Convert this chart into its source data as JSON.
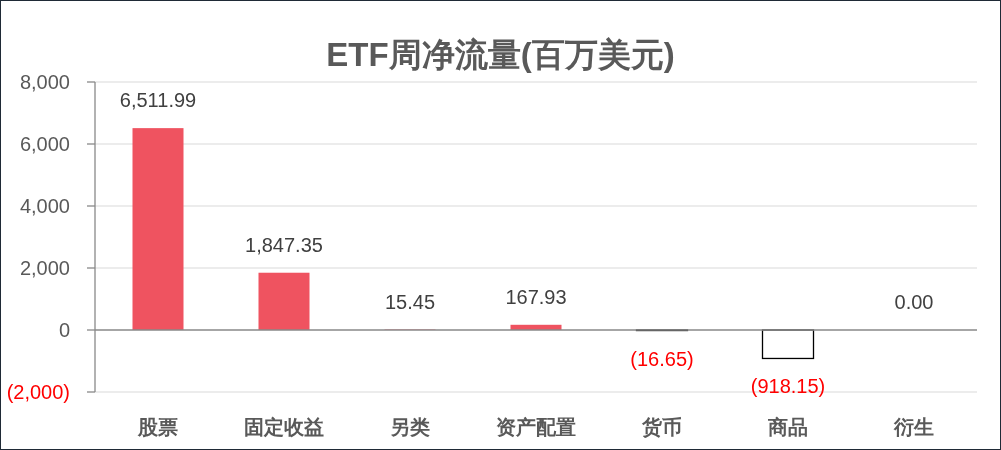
{
  "chart_data": {
    "type": "bar",
    "title": "ETF周净流量(百万美元)",
    "categories": [
      "股票",
      "固定收益",
      "另类",
      "资产配置",
      "货币",
      "商品",
      "衍生"
    ],
    "values": [
      6511.99,
      1847.35,
      15.45,
      167.93,
      -16.65,
      -918.15,
      0
    ],
    "colors": [
      "#ef5360",
      "#ef5360",
      "#ef5360",
      "#ef5360",
      "#ffffff",
      "#ffffff",
      "#ef5360"
    ],
    "value_labels": [
      "6,511.99",
      "1,847.35",
      "15.45",
      "167.93",
      "(16.65)",
      "(918.15)",
      "0.00"
    ],
    "ylim": [
      -2000,
      8000
    ],
    "yticks": [
      {
        "value": -2000,
        "label": "(2,000)"
      },
      0,
      {
        "value": 2000,
        "label": "2,000"
      },
      {
        "value": 4000,
        "label": "4,000"
      },
      {
        "value": 6000,
        "label": "6,000"
      },
      {
        "value": 8000,
        "label": "8,000"
      }
    ],
    "grid": "y"
  }
}
